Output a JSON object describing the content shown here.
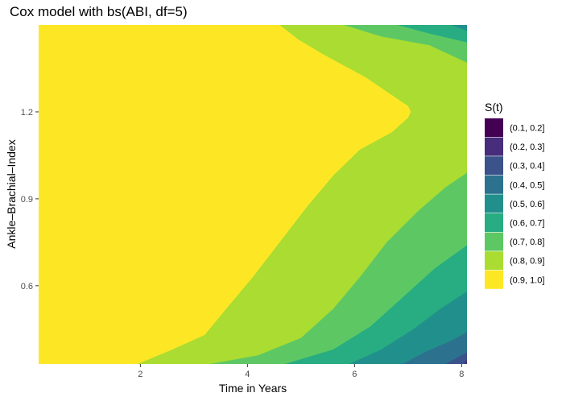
{
  "chart_data": {
    "type": "heatmap",
    "title": "Cox model with bs(ABI, df=5)",
    "xlabel": "Time in Years",
    "ylabel": "Ankle–Brachial–Index",
    "xlim": [
      0.1,
      8.1
    ],
    "ylim": [
      0.33,
      1.5
    ],
    "x_ticks": [
      {
        "value": 2,
        "label": "2"
      },
      {
        "value": 4,
        "label": "4"
      },
      {
        "value": 6,
        "label": "6"
      },
      {
        "value": 8,
        "label": "8"
      }
    ],
    "y_ticks": [
      {
        "value": 0.6,
        "label": "0.6"
      },
      {
        "value": 0.9,
        "label": "0.9"
      },
      {
        "value": 1.2,
        "label": "1.2"
      }
    ],
    "legend_title": "S(t)",
    "legend_position": "right",
    "legend_entries": [
      {
        "label": "(0.1, 0.2]",
        "color": "#440154"
      },
      {
        "label": "(0.2, 0.3]",
        "color": "#472D7B"
      },
      {
        "label": "(0.3, 0.4]",
        "color": "#3B528B"
      },
      {
        "label": "(0.4, 0.5]",
        "color": "#2C728E"
      },
      {
        "label": "(0.5, 0.6]",
        "color": "#21908C"
      },
      {
        "label": "(0.6, 0.7]",
        "color": "#27AD81"
      },
      {
        "label": "(0.7, 0.8]",
        "color": "#5DC863"
      },
      {
        "label": "(0.8, 0.9]",
        "color": "#AADC32"
      },
      {
        "label": "(0.9, 1.0]",
        "color": "#FDE725"
      }
    ],
    "contour_boundaries": [
      {
        "level": 0.9,
        "points": [
          [
            1.15,
            0.33
          ],
          [
            1.5,
            0.42
          ],
          [
            2.0,
            0.55
          ],
          [
            2.5,
            0.68
          ],
          [
            2.85,
            0.8
          ],
          [
            3.1,
            0.92
          ],
          [
            3.35,
            1.05
          ],
          [
            3.45,
            1.16
          ],
          [
            3.45,
            1.25
          ],
          [
            3.2,
            1.35
          ],
          [
            2.8,
            1.42
          ],
          [
            2.3,
            1.47
          ],
          [
            1.9,
            1.5
          ]
        ]
      },
      {
        "level": 0.8,
        "points": [
          [
            1.95,
            0.33
          ],
          [
            2.6,
            0.38
          ],
          [
            3.2,
            0.43
          ],
          [
            3.6,
            0.52
          ],
          [
            4.1,
            0.63
          ],
          [
            4.6,
            0.75
          ],
          [
            5.1,
            0.87
          ],
          [
            5.6,
            0.98
          ],
          [
            6.1,
            1.07
          ],
          [
            6.7,
            1.13
          ],
          [
            7.0,
            1.18
          ],
          [
            7.05,
            1.2
          ],
          [
            7.0,
            1.22
          ],
          [
            6.6,
            1.27
          ],
          [
            6.2,
            1.32
          ],
          [
            5.8,
            1.36
          ],
          [
            5.4,
            1.4
          ],
          [
            4.95,
            1.45
          ],
          [
            4.6,
            1.5
          ]
        ]
      },
      {
        "level": 0.7,
        "points": [
          [
            3.3,
            0.33
          ],
          [
            4.2,
            0.36
          ],
          [
            5.0,
            0.42
          ],
          [
            5.6,
            0.52
          ],
          [
            6.1,
            0.63
          ],
          [
            6.6,
            0.75
          ],
          [
            7.2,
            0.86
          ],
          [
            7.7,
            0.94
          ],
          [
            8.1,
            0.99
          ]
        ]
      },
      {
        "level": 0.7,
        "points": [
          [
            8.1,
            1.37
          ],
          [
            7.4,
            1.43
          ],
          [
            6.5,
            1.46
          ],
          [
            5.8,
            1.5
          ]
        ]
      },
      {
        "level": 0.6,
        "points": [
          [
            4.7,
            0.33
          ],
          [
            5.6,
            0.38
          ],
          [
            6.3,
            0.46
          ],
          [
            6.9,
            0.56
          ],
          [
            7.5,
            0.66
          ],
          [
            8.1,
            0.74
          ]
        ]
      },
      {
        "level": 0.6,
        "points": [
          [
            8.1,
            1.44
          ],
          [
            7.4,
            1.47
          ],
          [
            6.8,
            1.5
          ]
        ]
      },
      {
        "level": 0.5,
        "points": [
          [
            5.9,
            0.33
          ],
          [
            6.5,
            0.38
          ],
          [
            7.1,
            0.45
          ],
          [
            7.6,
            0.52
          ],
          [
            8.1,
            0.58
          ]
        ]
      },
      {
        "level": 0.5,
        "points": [
          [
            8.1,
            1.48
          ],
          [
            7.8,
            1.5
          ]
        ]
      },
      {
        "level": 0.4,
        "points": [
          [
            6.9,
            0.33
          ],
          [
            7.3,
            0.37
          ],
          [
            7.8,
            0.41
          ],
          [
            8.1,
            0.44
          ]
        ]
      },
      {
        "level": 0.3,
        "points": [
          [
            7.7,
            0.33
          ],
          [
            8.1,
            0.37
          ]
        ]
      },
      {
        "level": 0.2,
        "points": [
          [
            8.05,
            0.33
          ],
          [
            8.1,
            0.345
          ]
        ]
      }
    ]
  }
}
